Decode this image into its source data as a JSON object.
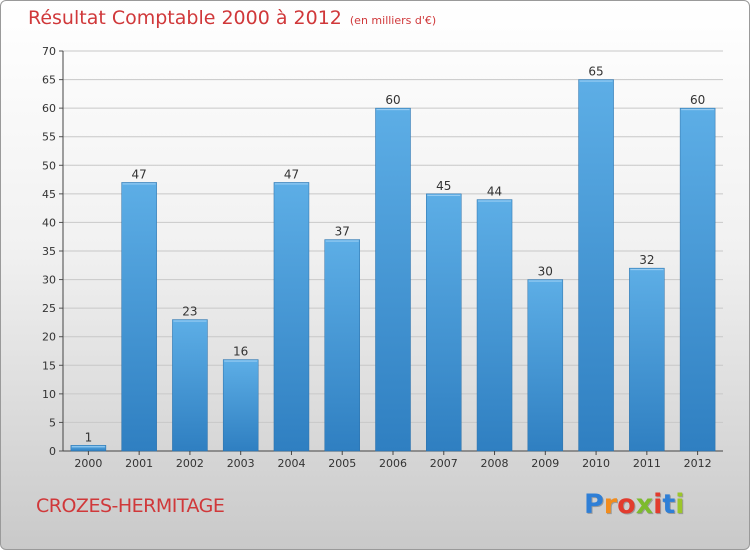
{
  "header": {
    "title": "Résultat Comptable 2000 à 2012",
    "unit": "(en milliers d'€)"
  },
  "footer": {
    "commune": "CROZES-HERMITAGE",
    "logo": {
      "letters": [
        "P",
        "r",
        "o",
        "x",
        "i",
        "t",
        "i"
      ],
      "colors": [
        "#2f7fd6",
        "#f28c1c",
        "#e23b2e",
        "#7dbb2e",
        "#e23b2e",
        "#2f7fd6",
        "#9cc62a"
      ]
    }
  },
  "colors": {
    "accent_text": "#d0383a",
    "bar_light": "#5daee6",
    "bar_dark": "#2f7fc1"
  },
  "chart_data": {
    "type": "bar",
    "title": "Résultat Comptable 2000 à 2012",
    "subtitle": "(en milliers d'€)",
    "categories": [
      "2000",
      "2001",
      "2002",
      "2003",
      "2004",
      "2005",
      "2006",
      "2007",
      "2008",
      "2009",
      "2010",
      "2011",
      "2012"
    ],
    "values": [
      1,
      47,
      23,
      16,
      47,
      37,
      60,
      45,
      44,
      30,
      65,
      32,
      60
    ],
    "ylim": [
      0,
      70
    ],
    "yticks": [
      0,
      5,
      10,
      15,
      20,
      25,
      30,
      35,
      40,
      45,
      50,
      55,
      60,
      65,
      70
    ],
    "grid": true,
    "data_labels": true
  }
}
